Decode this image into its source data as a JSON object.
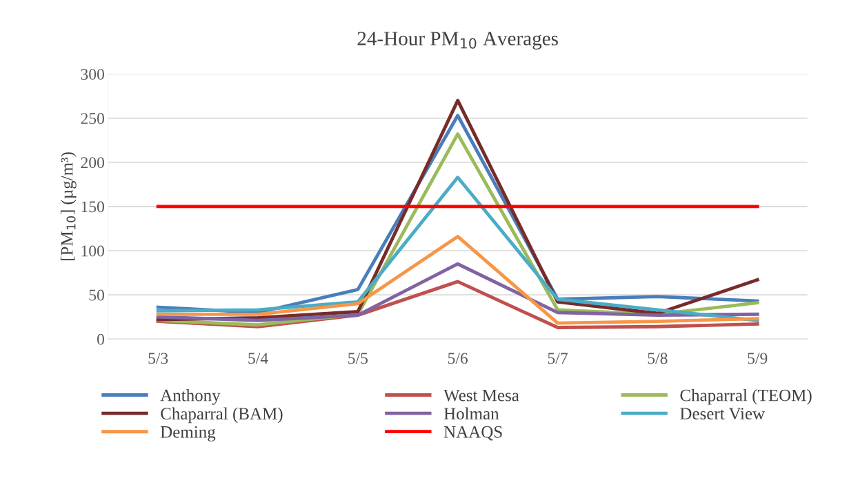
{
  "chart_data": {
    "type": "line",
    "title": "24-Hour PM$_{10}$ Averages",
    "ylabel": "[PM$_{10}$] (µg/m³)",
    "categories": [
      "5/3",
      "5/4",
      "5/5",
      "5/6",
      "5/7",
      "5/8",
      "5/9"
    ],
    "series": [
      {
        "name": "Anthony",
        "color": "#4a7ebb",
        "values": [
          36,
          30,
          56,
          253,
          45,
          48,
          43
        ]
      },
      {
        "name": "West Mesa",
        "color": "#c0504d",
        "values": [
          20,
          14,
          27,
          65,
          13,
          14,
          17
        ]
      },
      {
        "name": "Chaparral (TEOM)",
        "color": "#9bbb59",
        "values": [
          21,
          16,
          28,
          232,
          33,
          28,
          41
        ]
      },
      {
        "name": "Chaparral (BAM)",
        "color": "#772c2a",
        "values": [
          22,
          24,
          31,
          270,
          42,
          29,
          67
        ]
      },
      {
        "name": "Holman",
        "color": "#8064a2",
        "values": [
          25,
          21,
          27,
          85,
          30,
          27,
          28
        ]
      },
      {
        "name": "Desert View",
        "color": "#4bacc6",
        "values": [
          32,
          33,
          42,
          183,
          45,
          33,
          21
        ]
      },
      {
        "name": "Deming",
        "color": "#f79646",
        "values": [
          28,
          28,
          40,
          116,
          18,
          20,
          23
        ]
      },
      {
        "name": "NAAQS",
        "color": "#ff0000",
        "values": [
          150,
          150,
          150,
          150,
          150,
          150,
          150
        ]
      }
    ],
    "ylim": [
      0,
      300
    ],
    "yticks": [
      0,
      50,
      100,
      150,
      200,
      250,
      300
    ],
    "grid": "y",
    "legend": "bottom",
    "marker": "none",
    "line_style": "solid"
  }
}
